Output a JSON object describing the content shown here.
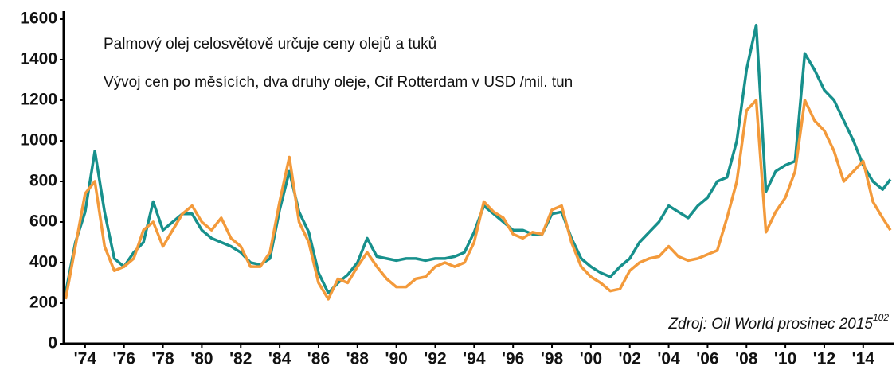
{
  "chart_data": {
    "type": "line",
    "title": "Palmový olej celosvětově určuje ceny olejů a tuků",
    "subtitle": "Vývoj cen po měsících, dva druhy oleje, Cif Rotterdam v USD /mil. tun",
    "source": "Zdroj: Oil World prosinec 2015",
    "source_note": "102",
    "x": [
      1973.0,
      1973.5,
      1974.0,
      1974.5,
      1975.0,
      1975.5,
      1976.0,
      1976.5,
      1977.0,
      1977.5,
      1978.0,
      1978.5,
      1979.0,
      1979.5,
      1980.0,
      1980.5,
      1981.0,
      1981.5,
      1982.0,
      1982.5,
      1983.0,
      1983.5,
      1984.0,
      1984.5,
      1985.0,
      1985.5,
      1986.0,
      1986.5,
      1987.0,
      1987.5,
      1988.0,
      1988.5,
      1989.0,
      1989.5,
      1990.0,
      1990.5,
      1991.0,
      1991.5,
      1992.0,
      1992.5,
      1993.0,
      1993.5,
      1994.0,
      1994.5,
      1995.0,
      1995.5,
      1996.0,
      1996.5,
      1997.0,
      1997.5,
      1998.0,
      1998.5,
      1999.0,
      1999.5,
      2000.0,
      2000.5,
      2001.0,
      2001.5,
      2002.0,
      2002.5,
      2003.0,
      2003.5,
      2004.0,
      2004.5,
      2005.0,
      2005.5,
      2006.0,
      2006.5,
      2007.0,
      2007.5,
      2008.0,
      2008.5,
      2009.0,
      2009.5,
      2010.0,
      2010.5,
      2011.0,
      2011.5,
      2012.0,
      2012.5,
      2013.0,
      2013.5,
      2014.0,
      2014.5,
      2015.0,
      2015.4
    ],
    "series": [
      {
        "color": "#17908c",
        "values": [
          250,
          500,
          650,
          950,
          650,
          420,
          380,
          450,
          500,
          700,
          560,
          600,
          640,
          640,
          560,
          520,
          500,
          480,
          450,
          400,
          390,
          420,
          660,
          850,
          650,
          550,
          350,
          250,
          300,
          340,
          400,
          520,
          430,
          420,
          410,
          420,
          420,
          410,
          420,
          420,
          430,
          450,
          550,
          680,
          640,
          600,
          560,
          560,
          540,
          540,
          640,
          650,
          520,
          420,
          380,
          350,
          330,
          380,
          420,
          500,
          550,
          600,
          680,
          650,
          620,
          680,
          720,
          800,
          820,
          1000,
          1350,
          1570,
          750,
          850,
          880,
          900,
          1430,
          1350,
          1250,
          1200,
          1100,
          1000,
          880,
          800,
          760,
          810
        ]
      },
      {
        "color": "#f39a3b",
        "values": [
          220,
          480,
          740,
          800,
          480,
          360,
          380,
          420,
          560,
          600,
          480,
          560,
          640,
          680,
          600,
          560,
          620,
          520,
          480,
          380,
          380,
          450,
          700,
          920,
          600,
          500,
          300,
          220,
          320,
          300,
          380,
          450,
          380,
          320,
          280,
          280,
          320,
          330,
          380,
          400,
          380,
          400,
          500,
          700,
          650,
          620,
          540,
          520,
          550,
          540,
          660,
          680,
          500,
          380,
          330,
          300,
          260,
          270,
          360,
          400,
          420,
          430,
          480,
          430,
          410,
          420,
          440,
          460,
          620,
          800,
          1150,
          1200,
          550,
          650,
          720,
          850,
          1200,
          1100,
          1050,
          950,
          800,
          850,
          900,
          700,
          620,
          560
        ]
      }
    ],
    "xlim": [
      1972.9,
      2015.4
    ],
    "xticks": [
      {
        "value": 1974,
        "label": "'74"
      },
      {
        "value": 1976,
        "label": "'76"
      },
      {
        "value": 1978,
        "label": "'78"
      },
      {
        "value": 1980,
        "label": "'80"
      },
      {
        "value": 1982,
        "label": "'82"
      },
      {
        "value": 1984,
        "label": "'84"
      },
      {
        "value": 1986,
        "label": "'86"
      },
      {
        "value": 1988,
        "label": "'88"
      },
      {
        "value": 1990,
        "label": "'90"
      },
      {
        "value": 1992,
        "label": "'92"
      },
      {
        "value": 1994,
        "label": "'94"
      },
      {
        "value": 1996,
        "label": "'96"
      },
      {
        "value": 1998,
        "label": "'98"
      },
      {
        "value": 2000,
        "label": "'00"
      },
      {
        "value": 2002,
        "label": "'02"
      },
      {
        "value": 2004,
        "label": "'04"
      },
      {
        "value": 2006,
        "label": "'06"
      },
      {
        "value": 2008,
        "label": "'08"
      },
      {
        "value": 2010,
        "label": "'10"
      },
      {
        "value": 2012,
        "label": "'12"
      },
      {
        "value": 2014,
        "label": "'14"
      }
    ],
    "ylim": [
      0,
      1600
    ],
    "yticks": [
      0,
      200,
      400,
      600,
      800,
      1000,
      1200,
      1400,
      1600
    ],
    "grid": false
  }
}
